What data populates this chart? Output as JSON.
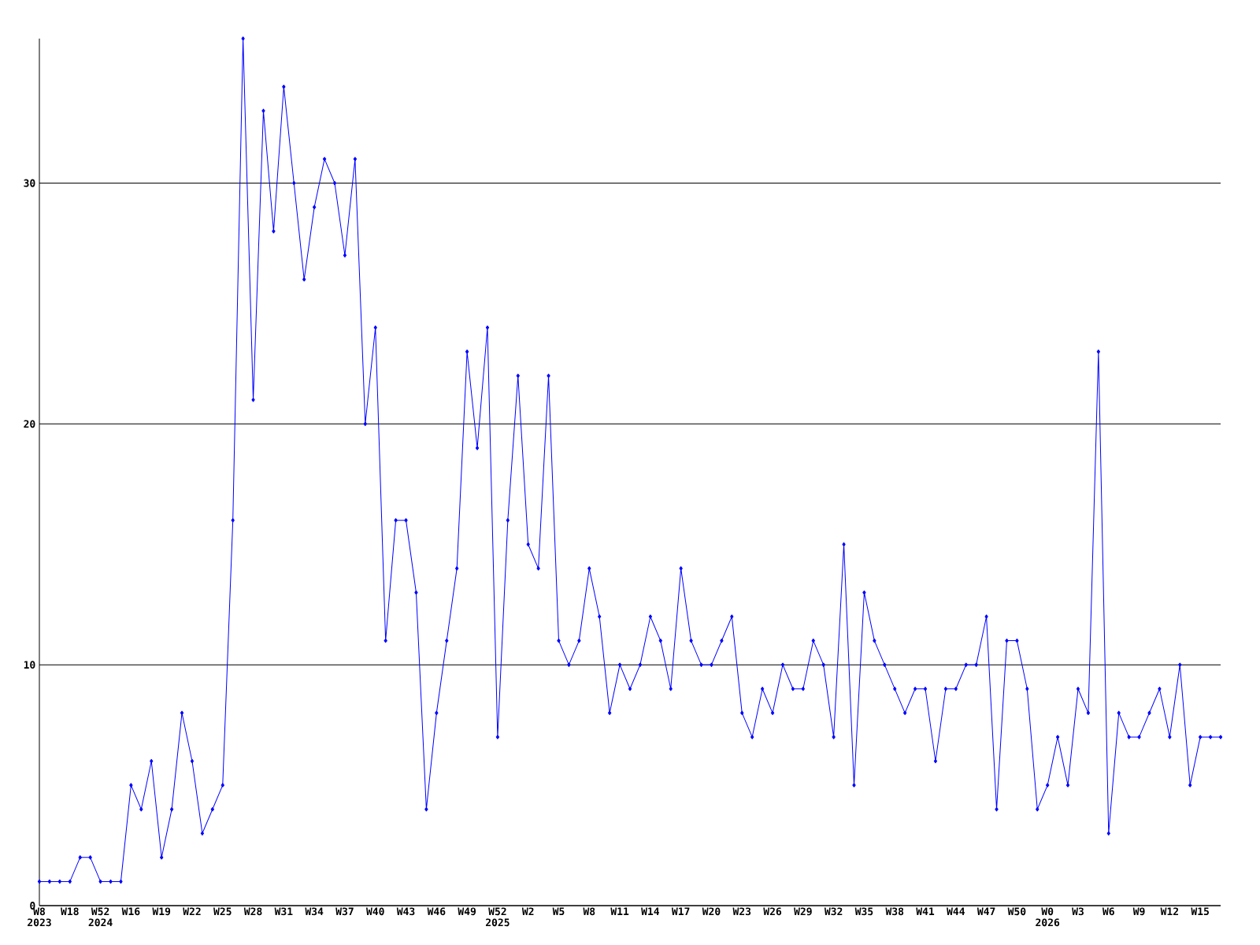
{
  "chart_data": {
    "type": "line",
    "categories": [
      "W8 2023",
      null,
      null,
      "W18",
      null,
      null,
      "W52 2024",
      null,
      null,
      "W16",
      null,
      null,
      "W19",
      null,
      null,
      "W22",
      null,
      null,
      "W25",
      null,
      null,
      "W28",
      null,
      null,
      "W31",
      null,
      null,
      "W34",
      null,
      null,
      "W37",
      null,
      null,
      "W40",
      null,
      null,
      "W43",
      null,
      null,
      "W46",
      null,
      null,
      "W49",
      null,
      null,
      "W52 2025",
      null,
      null,
      "W2",
      null,
      null,
      "W5",
      null,
      null,
      "W8",
      null,
      null,
      "W11",
      null,
      null,
      "W14",
      null,
      null,
      "W17",
      null,
      null,
      "W20",
      null,
      null,
      "W23",
      null,
      null,
      "W26",
      null,
      null,
      "W29",
      null,
      null,
      "W32",
      null,
      null,
      "W35",
      null,
      null,
      "W38",
      null,
      null,
      "W41",
      null,
      null,
      "W44",
      null,
      null,
      "W47",
      null,
      null,
      "W50",
      null,
      null,
      "W0 2026",
      null,
      null,
      "W3",
      null,
      null,
      "W6",
      null,
      null,
      "W9",
      null,
      null,
      "W12",
      null,
      null,
      "W15",
      null,
      null
    ],
    "values": [
      1,
      1,
      1,
      1,
      2,
      2,
      1,
      1,
      1,
      5,
      4,
      6,
      2,
      4,
      8,
      6,
      3,
      4,
      5,
      16,
      36,
      21,
      33,
      28,
      34,
      30,
      26,
      29,
      31,
      30,
      27,
      31,
      20,
      24,
      11,
      16,
      16,
      13,
      4,
      8,
      11,
      14,
      23,
      19,
      24,
      7,
      16,
      22,
      15,
      14,
      22,
      11,
      10,
      11,
      14,
      12,
      8,
      10,
      9,
      10,
      12,
      11,
      9,
      14,
      11,
      10,
      10,
      11,
      12,
      8,
      7,
      9,
      8,
      10,
      9,
      9,
      11,
      10,
      7,
      15,
      5,
      13,
      11,
      10,
      9,
      8,
      9,
      9,
      6,
      9,
      9,
      10,
      10,
      12,
      4,
      11,
      11,
      9,
      4,
      5,
      7,
      5,
      9,
      8,
      23,
      3,
      8,
      7,
      7,
      8,
      9,
      7,
      10,
      5,
      7,
      7,
      7
    ],
    "color": "#0000ff",
    "marker": "diamond",
    "ylim": [
      0,
      36
    ],
    "yticks": [
      0,
      10,
      20,
      30
    ],
    "grid": "y"
  }
}
